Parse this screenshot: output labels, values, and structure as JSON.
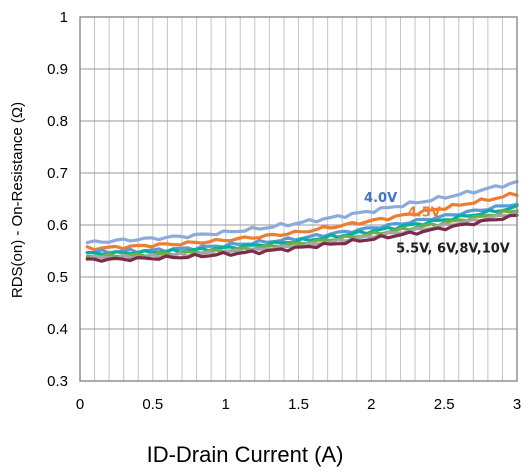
{
  "chart_data": {
    "type": "line",
    "title": "",
    "xlabel": "ID-Drain Current (A)",
    "ylabel": "RDS(on) - On-Resistance (Ω)",
    "xlim": [
      0,
      3
    ],
    "ylim": [
      0.3,
      1
    ],
    "x_ticks": [
      "0",
      "0.5",
      "1",
      "1.5",
      "2",
      "2.5",
      "3"
    ],
    "y_ticks": [
      "0.3",
      "0.4",
      "0.5",
      "0.6",
      "0.7",
      "0.8",
      "0.9",
      "1"
    ],
    "grid": true,
    "x": [
      0.05,
      0.25,
      0.5,
      0.75,
      1.0,
      1.25,
      1.5,
      1.75,
      2.0,
      2.25,
      2.5,
      2.75,
      3.0
    ],
    "series": [
      {
        "color": "#8eaadb",
        "values": [
          0.566,
          0.57,
          0.574,
          0.579,
          0.586,
          0.594,
          0.604,
          0.615,
          0.627,
          0.64,
          0.653,
          0.667,
          0.682
        ]
      },
      {
        "color": "#ed7d31",
        "values": [
          0.555,
          0.557,
          0.561,
          0.565,
          0.571,
          0.578,
          0.586,
          0.597,
          0.608,
          0.62,
          0.633,
          0.646,
          0.66
        ]
      },
      {
        "color": "#5b9bd5",
        "values": [
          0.548,
          0.549,
          0.551,
          0.555,
          0.561,
          0.567,
          0.574,
          0.584,
          0.594,
          0.605,
          0.617,
          0.629,
          0.641
        ]
      },
      {
        "color": "#00b0a0",
        "values": [
          0.545,
          0.546,
          0.548,
          0.551,
          0.556,
          0.562,
          0.569,
          0.578,
          0.588,
          0.599,
          0.61,
          0.622,
          0.634
        ]
      },
      {
        "color": "#70ad47",
        "values": [
          0.54,
          0.541,
          0.543,
          0.547,
          0.551,
          0.557,
          0.564,
          0.573,
          0.582,
          0.593,
          0.604,
          0.616,
          0.628
        ]
      },
      {
        "color": "#a5a5a5",
        "values": [
          0.537,
          0.538,
          0.54,
          0.543,
          0.548,
          0.553,
          0.56,
          0.568,
          0.578,
          0.588,
          0.599,
          0.611,
          0.623
        ]
      },
      {
        "color": "#7b2c4a",
        "values": [
          0.533,
          0.534,
          0.536,
          0.539,
          0.544,
          0.549,
          0.556,
          0.564,
          0.573,
          0.583,
          0.594,
          0.606,
          0.618
        ]
      }
    ],
    "annotations": [
      {
        "text": "4.0V",
        "x": 1.95,
        "y": 0.644,
        "color": "#4472c4"
      },
      {
        "text": "4.5V",
        "x": 2.25,
        "y": 0.616,
        "color": "#ed7d31"
      },
      {
        "text": "5.5V, 6V,8V,10V",
        "x": 2.17,
        "y": 0.547,
        "color": "#1f1f1f"
      }
    ]
  }
}
